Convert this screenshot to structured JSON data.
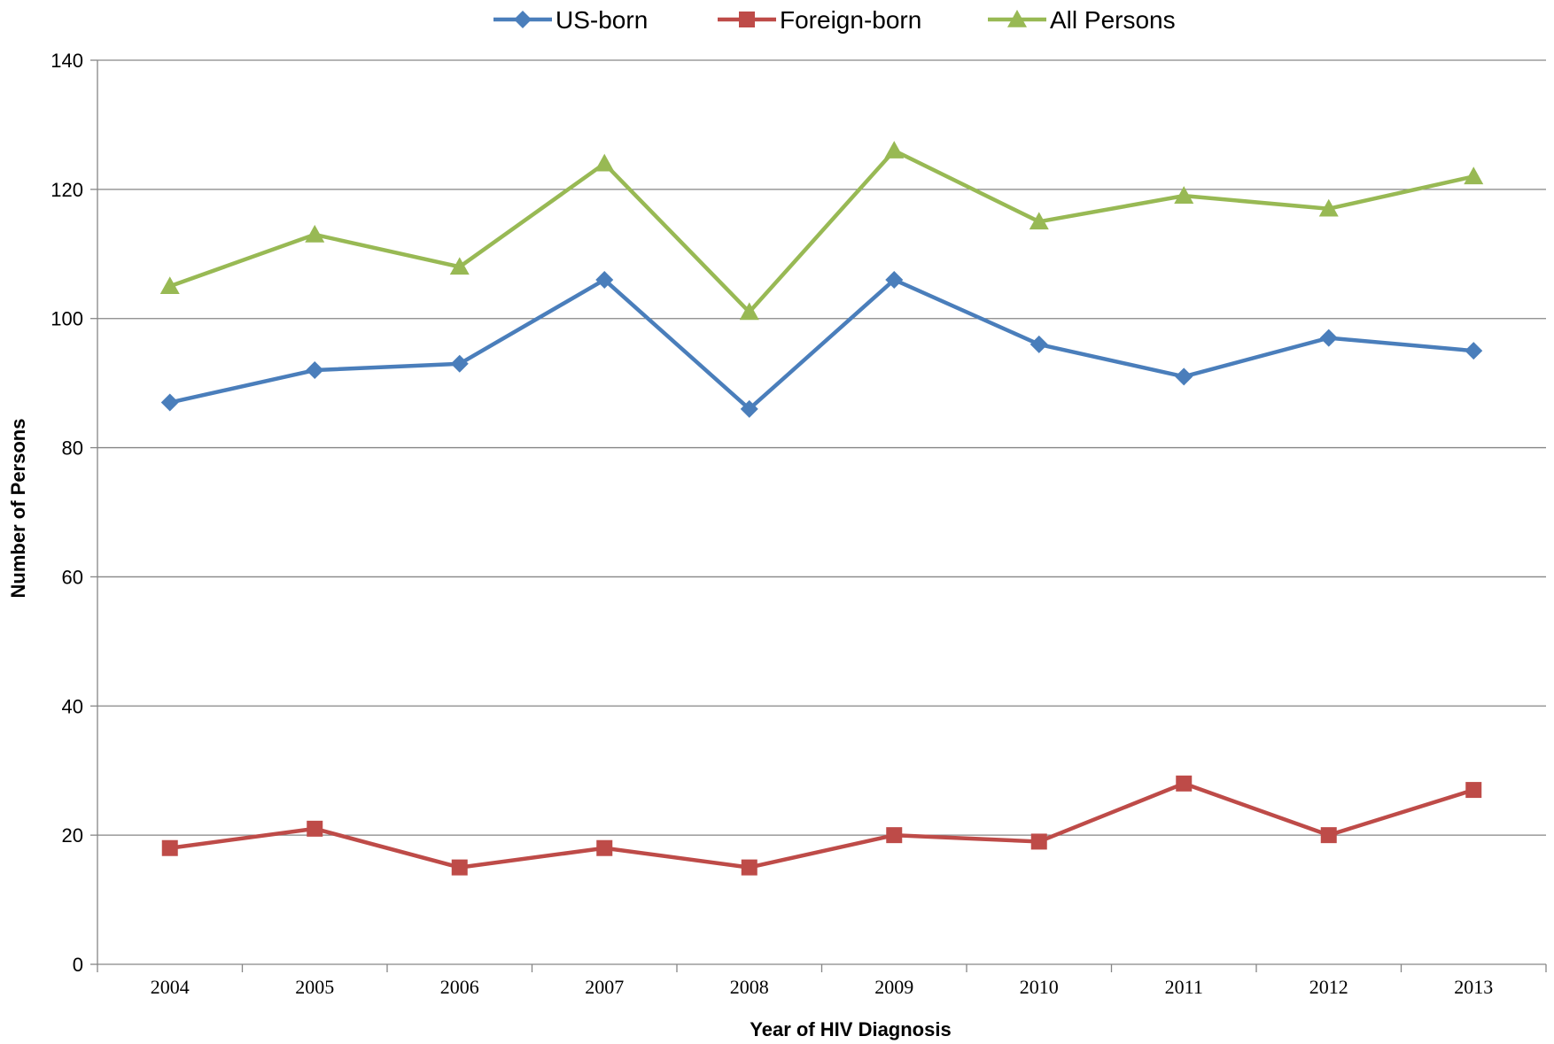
{
  "chart_data": {
    "type": "line",
    "title": "",
    "xlabel": "Year of HIV Diagnosis",
    "ylabel": "Number of Persons",
    "ylim": [
      0,
      140
    ],
    "yticks": [
      0,
      20,
      40,
      60,
      80,
      100,
      120,
      140
    ],
    "grid": "horizontal",
    "legend_position": "top",
    "categories": [
      "2004",
      "2005",
      "2006",
      "2007",
      "2008",
      "2009",
      "2010",
      "2011",
      "2012",
      "2013"
    ],
    "series": [
      {
        "name": "US-born",
        "marker": "diamond",
        "color": "#4a7ebb",
        "values": [
          87,
          92,
          93,
          106,
          86,
          106,
          96,
          91,
          97,
          95
        ]
      },
      {
        "name": "Foreign-born",
        "marker": "square",
        "color": "#be4b48",
        "values": [
          18,
          21,
          15,
          18,
          15,
          20,
          19,
          28,
          20,
          27
        ]
      },
      {
        "name": "All Persons",
        "marker": "triangle",
        "color": "#98b954",
        "values": [
          105,
          113,
          108,
          124,
          101,
          126,
          115,
          119,
          117,
          122
        ]
      }
    ]
  }
}
